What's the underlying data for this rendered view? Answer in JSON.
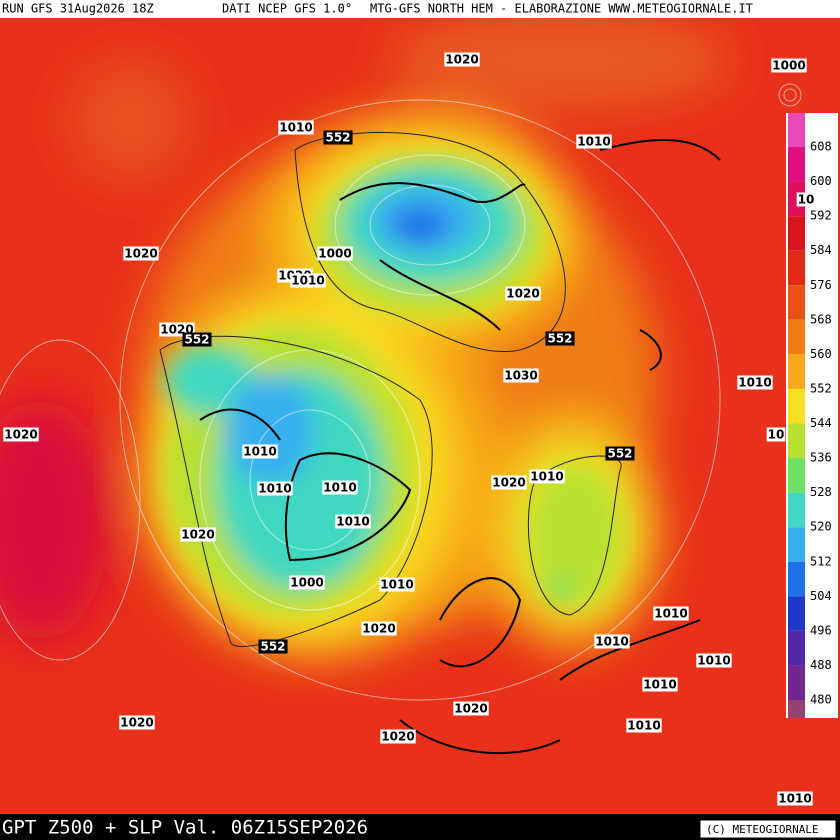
{
  "header": {
    "run": "RUN GFS 31Aug2026 18Z",
    "source": "DATI NCEP GFS 1.0°",
    "credit": "MTG-GFS NORTH HEM - ELABORAZIONE WWW.METEOGIORNALE.IT"
  },
  "footer": {
    "title": "GPT Z500 + SLP Val. 06Z15SEP2026",
    "copyright": "(C) METEOGIORNALE"
  },
  "legend": {
    "levels": [
      608,
      600,
      592,
      584,
      576,
      568,
      560,
      552,
      544,
      536,
      528,
      520,
      512,
      504,
      496,
      488,
      480
    ],
    "colors": [
      "#e848b8",
      "#e0107e",
      "#e0105a",
      "#d81420",
      "#e02a14",
      "#e85214",
      "#f07c14",
      "#f8a818",
      "#f8e020",
      "#b8e030",
      "#70e060",
      "#40d8c0",
      "#38b0f0",
      "#2070e8",
      "#2038c8",
      "#5028a8",
      "#702890",
      "#984070"
    ]
  },
  "map": {
    "slp_labels": [
      "1020",
      "1000",
      "1010",
      "1010",
      "10",
      "1020",
      "1000",
      "1020",
      "1010",
      "1020",
      "1020",
      "1030",
      "1010",
      "10",
      "1020",
      "1010",
      "1010",
      "1010",
      "1020",
      "1010",
      "1010",
      "1020",
      "1000",
      "1010",
      "1020",
      "1010",
      "1010",
      "1010",
      "1010",
      "1020",
      "1020",
      "1010",
      "1020",
      "1010"
    ],
    "z500_labels": [
      "552",
      "552",
      "552",
      "552",
      "552"
    ]
  }
}
